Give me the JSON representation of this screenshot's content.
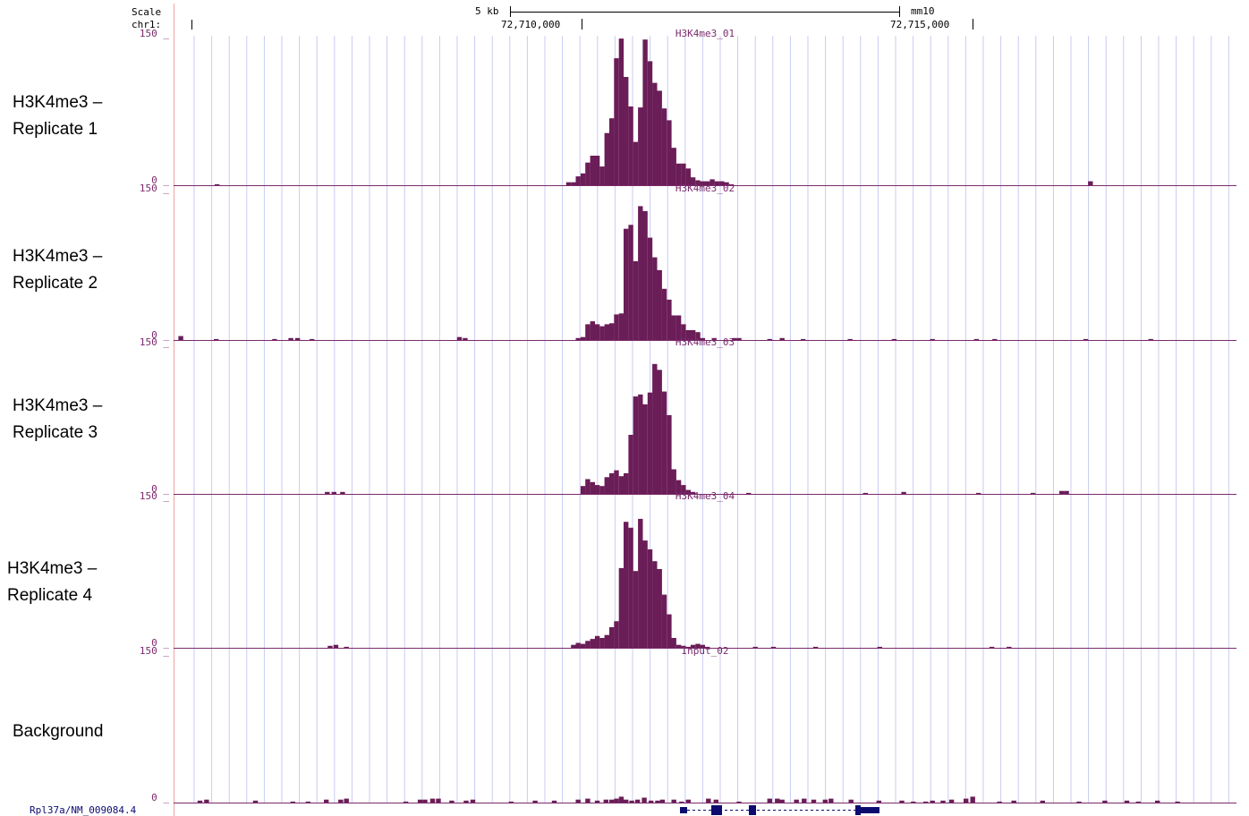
{
  "header": {
    "scale_label": "Scale",
    "chrom_label": "chr1:",
    "scale_bar_label": "5 kb",
    "assembly": "mm10",
    "position_left": "72,710,000",
    "position_right": "72,715,000"
  },
  "track_labels": [
    {
      "line1": "H3K4me3 –",
      "line2": "Replicate 1"
    },
    {
      "line1": "H3K4me3 –",
      "line2": "Replicate 2"
    },
    {
      "line1": "H3K4me3 –",
      "line2": "Replicate 3"
    },
    {
      "line1": "H3K4me3 –",
      "line2": "Replicate 4"
    },
    {
      "line1": "Background",
      "line2": ""
    }
  ],
  "gene": {
    "label": "Rpl37a/NM_009084.4"
  },
  "colors": {
    "signal": "#6a1d57",
    "axis": "#7a2a6c",
    "grid": "#c9cbf3",
    "gene": "#0b0b70",
    "boundary": "#f0a0a0"
  },
  "chart_data": {
    "type": "bar",
    "genomic_range": [
      72706800,
      72717900
    ],
    "ylim": [
      0,
      150
    ],
    "ytick_labels": [
      "150 _",
      "0 _"
    ],
    "bin_size_bp": 50,
    "series": [
      {
        "name": "H3K4me3_01",
        "values": [
          [
            72707230,
            1
          ],
          [
            72710900,
            3
          ],
          [
            72710950,
            3
          ],
          [
            72711000,
            9
          ],
          [
            72711050,
            12
          ],
          [
            72711100,
            23
          ],
          [
            72711150,
            30
          ],
          [
            72711200,
            30
          ],
          [
            72711250,
            19
          ],
          [
            72711300,
            53
          ],
          [
            72711350,
            68
          ],
          [
            72711400,
            129
          ],
          [
            72711450,
            149
          ],
          [
            72711500,
            110
          ],
          [
            72711550,
            80
          ],
          [
            72711600,
            44
          ],
          [
            72711650,
            79
          ],
          [
            72711700,
            148
          ],
          [
            72711750,
            126
          ],
          [
            72711800,
            104
          ],
          [
            72711850,
            96
          ],
          [
            72711900,
            78
          ],
          [
            72711950,
            66
          ],
          [
            72712000,
            38
          ],
          [
            72712050,
            22
          ],
          [
            72712100,
            22
          ],
          [
            72712150,
            17
          ],
          [
            72712200,
            8
          ],
          [
            72712250,
            5
          ],
          [
            72712300,
            4
          ],
          [
            72712350,
            4
          ],
          [
            72712400,
            6
          ],
          [
            72712450,
            4
          ],
          [
            72712500,
            4
          ],
          [
            72712550,
            3
          ],
          [
            72712600,
            1
          ],
          [
            72716350,
            4
          ]
        ]
      },
      {
        "name": "H3K4me3_02",
        "values": [
          [
            72706850,
            4
          ],
          [
            72707220,
            1
          ],
          [
            72707830,
            1
          ],
          [
            72708000,
            2
          ],
          [
            72708070,
            2
          ],
          [
            72708220,
            1
          ],
          [
            72709760,
            3
          ],
          [
            72709820,
            2
          ],
          [
            72711000,
            2
          ],
          [
            72711050,
            3
          ],
          [
            72711100,
            16
          ],
          [
            72711150,
            19
          ],
          [
            72711200,
            16
          ],
          [
            72711250,
            14
          ],
          [
            72711300,
            16
          ],
          [
            72711350,
            17
          ],
          [
            72711400,
            26
          ],
          [
            72711450,
            27
          ],
          [
            72711500,
            113
          ],
          [
            72711550,
            117
          ],
          [
            72711600,
            80
          ],
          [
            72711650,
            136
          ],
          [
            72711700,
            131
          ],
          [
            72711750,
            104
          ],
          [
            72711800,
            84
          ],
          [
            72711850,
            71
          ],
          [
            72711900,
            52
          ],
          [
            72711950,
            41
          ],
          [
            72712000,
            25
          ],
          [
            72712050,
            25
          ],
          [
            72712100,
            16
          ],
          [
            72712150,
            10
          ],
          [
            72712200,
            10
          ],
          [
            72712250,
            8
          ],
          [
            72712300,
            2
          ],
          [
            72712420,
            2
          ],
          [
            72712630,
            2
          ],
          [
            72712680,
            2
          ],
          [
            72713000,
            1
          ],
          [
            72713130,
            2
          ],
          [
            72713350,
            1
          ],
          [
            72713840,
            1
          ],
          [
            72714300,
            1
          ],
          [
            72714700,
            1
          ],
          [
            72715160,
            1
          ],
          [
            72715350,
            1
          ],
          [
            72716300,
            1
          ],
          [
            72716980,
            1
          ]
        ]
      },
      {
        "name": "H3K4me3_03",
        "values": [
          [
            72708380,
            2
          ],
          [
            72708450,
            2
          ],
          [
            72708540,
            2
          ],
          [
            72711050,
            8
          ],
          [
            72711100,
            15
          ],
          [
            72711150,
            12
          ],
          [
            72711200,
            9
          ],
          [
            72711250,
            8
          ],
          [
            72711300,
            17
          ],
          [
            72711350,
            21
          ],
          [
            72711400,
            24
          ],
          [
            72711450,
            18
          ],
          [
            72711500,
            21
          ],
          [
            72711550,
            60
          ],
          [
            72711600,
            99
          ],
          [
            72711650,
            101
          ],
          [
            72711700,
            91
          ],
          [
            72711750,
            103
          ],
          [
            72711800,
            132
          ],
          [
            72711850,
            126
          ],
          [
            72711900,
            104
          ],
          [
            72711950,
            80
          ],
          [
            72712000,
            25
          ],
          [
            72712050,
            14
          ],
          [
            72712100,
            9
          ],
          [
            72712150,
            4
          ],
          [
            72712200,
            2
          ],
          [
            72712780,
            1
          ],
          [
            72714000,
            1
          ],
          [
            72714400,
            2
          ],
          [
            72715180,
            1
          ],
          [
            72715750,
            1
          ],
          [
            72716050,
            3
          ],
          [
            72716100,
            3
          ]
        ]
      },
      {
        "name": "H3K4me3_04",
        "values": [
          [
            72708410,
            2
          ],
          [
            72708470,
            3
          ],
          [
            72708580,
            1
          ],
          [
            72710950,
            3
          ],
          [
            72711000,
            5
          ],
          [
            72711050,
            4
          ],
          [
            72711100,
            7
          ],
          [
            72711150,
            9
          ],
          [
            72711200,
            12
          ],
          [
            72711250,
            10
          ],
          [
            72711300,
            13
          ],
          [
            72711350,
            21
          ],
          [
            72711400,
            27
          ],
          [
            72711450,
            81
          ],
          [
            72711500,
            128
          ],
          [
            72711550,
            122
          ],
          [
            72711600,
            78
          ],
          [
            72711650,
            131
          ],
          [
            72711700,
            109
          ],
          [
            72711750,
            100
          ],
          [
            72711800,
            88
          ],
          [
            72711850,
            80
          ],
          [
            72711900,
            54
          ],
          [
            72711950,
            34
          ],
          [
            72712000,
            10
          ],
          [
            72712050,
            3
          ],
          [
            72712100,
            2
          ],
          [
            72712150,
            1
          ],
          [
            72712200,
            3
          ],
          [
            72712250,
            4
          ],
          [
            72712300,
            3
          ],
          [
            72712350,
            1
          ],
          [
            72712850,
            1
          ],
          [
            72713040,
            1
          ],
          [
            72713480,
            1
          ],
          [
            72714150,
            1
          ],
          [
            72715320,
            1
          ],
          [
            72715500,
            1
          ]
        ]
      },
      {
        "name": "Input_02",
        "values": [
          [
            72707050,
            2
          ],
          [
            72707120,
            3
          ],
          [
            72707630,
            2
          ],
          [
            72708020,
            1
          ],
          [
            72708180,
            1
          ],
          [
            72708370,
            3
          ],
          [
            72708520,
            3
          ],
          [
            72708580,
            4
          ],
          [
            72709200,
            1
          ],
          [
            72709350,
            3
          ],
          [
            72709400,
            3
          ],
          [
            72709480,
            4
          ],
          [
            72709540,
            4
          ],
          [
            72709680,
            2
          ],
          [
            72709830,
            2
          ],
          [
            72709900,
            3
          ],
          [
            72710300,
            1
          ],
          [
            72710550,
            2
          ],
          [
            72710750,
            2
          ],
          [
            72711000,
            3
          ],
          [
            72711100,
            4
          ],
          [
            72711200,
            2
          ],
          [
            72711290,
            3
          ],
          [
            72711350,
            3
          ],
          [
            72711400,
            4
          ],
          [
            72711450,
            6
          ],
          [
            72711500,
            3
          ],
          [
            72711560,
            2
          ],
          [
            72711620,
            3
          ],
          [
            72711690,
            5
          ],
          [
            72711760,
            2
          ],
          [
            72711830,
            2
          ],
          [
            72711880,
            3
          ],
          [
            72712000,
            3
          ],
          [
            72712080,
            1
          ],
          [
            72712150,
            3
          ],
          [
            72712360,
            4
          ],
          [
            72712440,
            3
          ],
          [
            72712680,
            1
          ],
          [
            72713000,
            4
          ],
          [
            72713080,
            4
          ],
          [
            72713130,
            3
          ],
          [
            72713280,
            3
          ],
          [
            72713360,
            4
          ],
          [
            72713460,
            3
          ],
          [
            72713580,
            3
          ],
          [
            72713640,
            4
          ],
          [
            72713850,
            3
          ],
          [
            72714140,
            2
          ],
          [
            72714380,
            2
          ],
          [
            72714500,
            1
          ],
          [
            72714630,
            1
          ],
          [
            72714700,
            2
          ],
          [
            72714810,
            2
          ],
          [
            72714900,
            3
          ],
          [
            72715050,
            4
          ],
          [
            72715120,
            6
          ],
          [
            72715400,
            1
          ],
          [
            72715550,
            2
          ],
          [
            72715850,
            2
          ],
          [
            72716230,
            1
          ],
          [
            72716500,
            2
          ],
          [
            72716730,
            2
          ],
          [
            72716850,
            1
          ],
          [
            72717050,
            2
          ],
          [
            72717260,
            1
          ]
        ]
      }
    ]
  }
}
